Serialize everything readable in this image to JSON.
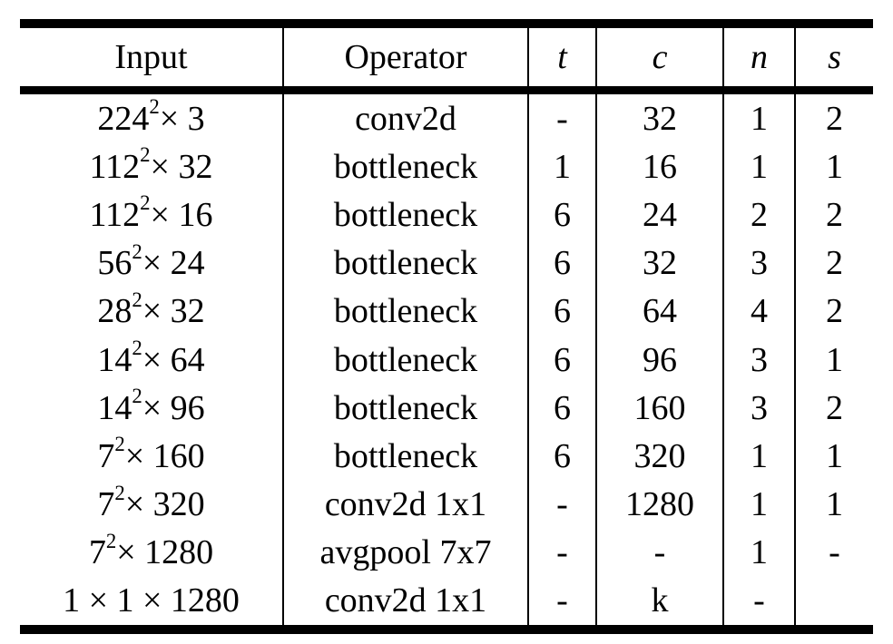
{
  "table": {
    "columns": [
      "Input",
      "Operator",
      "t",
      "c",
      "n",
      "s"
    ],
    "rows": [
      [
        "224^2 × 3",
        "conv2d",
        "-",
        "32",
        "1",
        "2"
      ],
      [
        "112^2 × 32",
        "bottleneck",
        "1",
        "16",
        "1",
        "1"
      ],
      [
        "112^2 × 16",
        "bottleneck",
        "6",
        "24",
        "2",
        "2"
      ],
      [
        "56^2 × 24",
        "bottleneck",
        "6",
        "32",
        "3",
        "2"
      ],
      [
        "28^2 × 32",
        "bottleneck",
        "6",
        "64",
        "4",
        "2"
      ],
      [
        "14^2 × 64",
        "bottleneck",
        "6",
        "96",
        "3",
        "1"
      ],
      [
        "14^2 × 96",
        "bottleneck",
        "6",
        "160",
        "3",
        "2"
      ],
      [
        "7^2 × 160",
        "bottleneck",
        "6",
        "320",
        "1",
        "1"
      ],
      [
        "7^2 × 320",
        "conv2d 1x1",
        "-",
        "1280",
        "1",
        "1"
      ],
      [
        "7^2 × 1280",
        "avgpool 7x7",
        "-",
        "-",
        "1",
        "-"
      ],
      [
        "1 × 1 × 1280",
        "conv2d 1x1",
        "-",
        "k",
        "-",
        ""
      ]
    ],
    "colors": {
      "text": "#000000",
      "background": "#ffffff",
      "rule": "#000000"
    }
  }
}
